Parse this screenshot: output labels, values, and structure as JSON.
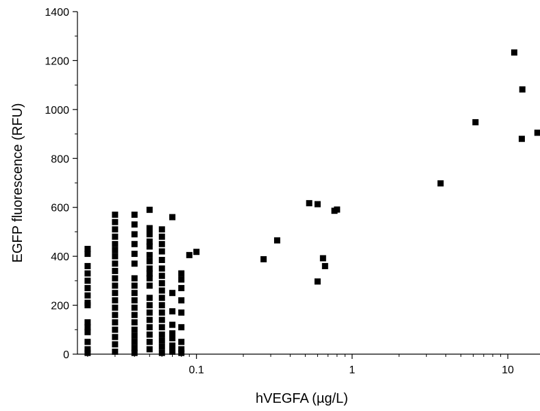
{
  "chart_data": {
    "type": "scatter",
    "xlabel": "hVEGFA (µg/L)",
    "ylabel": "EGFP fluorescence (RFU)",
    "xscale": "log",
    "xlim": [
      0.0172,
      16.1
    ],
    "ylim": [
      0,
      1400
    ],
    "grid": false,
    "marker_color": "#000000",
    "x_ticks": [
      {
        "value": 0.1,
        "label": "0.1"
      },
      {
        "value": 1,
        "label": "1"
      },
      {
        "value": 10,
        "label": "10"
      }
    ],
    "y_ticks": [
      {
        "value": 0,
        "label": "0"
      },
      {
        "value": 200,
        "label": "200"
      },
      {
        "value": 400,
        "label": "400"
      },
      {
        "value": 600,
        "label": "600"
      },
      {
        "value": 800,
        "label": "800"
      },
      {
        "value": 1000,
        "label": "1000"
      },
      {
        "value": 1200,
        "label": "1200"
      },
      {
        "value": 1400,
        "label": "1400"
      }
    ],
    "points": [
      {
        "x": 0.02,
        "y": 430
      },
      {
        "x": 0.02,
        "y": 410
      },
      {
        "x": 0.02,
        "y": 360
      },
      {
        "x": 0.02,
        "y": 330
      },
      {
        "x": 0.02,
        "y": 300
      },
      {
        "x": 0.02,
        "y": 270
      },
      {
        "x": 0.02,
        "y": 240
      },
      {
        "x": 0.02,
        "y": 210
      },
      {
        "x": 0.02,
        "y": 200
      },
      {
        "x": 0.02,
        "y": 130
      },
      {
        "x": 0.02,
        "y": 110
      },
      {
        "x": 0.02,
        "y": 90
      },
      {
        "x": 0.02,
        "y": 50
      },
      {
        "x": 0.02,
        "y": 20
      },
      {
        "x": 0.02,
        "y": 5
      },
      {
        "x": 0.03,
        "y": 570
      },
      {
        "x": 0.03,
        "y": 540
      },
      {
        "x": 0.03,
        "y": 510
      },
      {
        "x": 0.03,
        "y": 480
      },
      {
        "x": 0.03,
        "y": 450
      },
      {
        "x": 0.03,
        "y": 425
      },
      {
        "x": 0.03,
        "y": 400
      },
      {
        "x": 0.03,
        "y": 370
      },
      {
        "x": 0.03,
        "y": 340
      },
      {
        "x": 0.03,
        "y": 310
      },
      {
        "x": 0.03,
        "y": 280
      },
      {
        "x": 0.03,
        "y": 250
      },
      {
        "x": 0.03,
        "y": 220
      },
      {
        "x": 0.03,
        "y": 190
      },
      {
        "x": 0.03,
        "y": 160
      },
      {
        "x": 0.03,
        "y": 130
      },
      {
        "x": 0.03,
        "y": 100
      },
      {
        "x": 0.03,
        "y": 70
      },
      {
        "x": 0.03,
        "y": 40
      },
      {
        "x": 0.03,
        "y": 10
      },
      {
        "x": 0.04,
        "y": 570
      },
      {
        "x": 0.04,
        "y": 530
      },
      {
        "x": 0.04,
        "y": 490
      },
      {
        "x": 0.04,
        "y": 450
      },
      {
        "x": 0.04,
        "y": 410
      },
      {
        "x": 0.04,
        "y": 370
      },
      {
        "x": 0.04,
        "y": 310
      },
      {
        "x": 0.04,
        "y": 280
      },
      {
        "x": 0.04,
        "y": 250
      },
      {
        "x": 0.04,
        "y": 220
      },
      {
        "x": 0.04,
        "y": 190
      },
      {
        "x": 0.04,
        "y": 160
      },
      {
        "x": 0.04,
        "y": 130
      },
      {
        "x": 0.04,
        "y": 100
      },
      {
        "x": 0.04,
        "y": 75
      },
      {
        "x": 0.04,
        "y": 50
      },
      {
        "x": 0.04,
        "y": 25
      },
      {
        "x": 0.04,
        "y": 5
      },
      {
        "x": 0.05,
        "y": 590
      },
      {
        "x": 0.05,
        "y": 515
      },
      {
        "x": 0.05,
        "y": 490
      },
      {
        "x": 0.05,
        "y": 460
      },
      {
        "x": 0.05,
        "y": 440
      },
      {
        "x": 0.05,
        "y": 405
      },
      {
        "x": 0.05,
        "y": 380
      },
      {
        "x": 0.05,
        "y": 350
      },
      {
        "x": 0.05,
        "y": 330
      },
      {
        "x": 0.05,
        "y": 310
      },
      {
        "x": 0.05,
        "y": 280
      },
      {
        "x": 0.05,
        "y": 230
      },
      {
        "x": 0.05,
        "y": 200
      },
      {
        "x": 0.05,
        "y": 170
      },
      {
        "x": 0.05,
        "y": 140
      },
      {
        "x": 0.05,
        "y": 110
      },
      {
        "x": 0.05,
        "y": 80
      },
      {
        "x": 0.05,
        "y": 50
      },
      {
        "x": 0.05,
        "y": 20
      },
      {
        "x": 0.06,
        "y": 510
      },
      {
        "x": 0.06,
        "y": 480
      },
      {
        "x": 0.06,
        "y": 450
      },
      {
        "x": 0.06,
        "y": 420
      },
      {
        "x": 0.06,
        "y": 385
      },
      {
        "x": 0.06,
        "y": 350
      },
      {
        "x": 0.06,
        "y": 320
      },
      {
        "x": 0.06,
        "y": 290
      },
      {
        "x": 0.06,
        "y": 260
      },
      {
        "x": 0.06,
        "y": 230
      },
      {
        "x": 0.06,
        "y": 200
      },
      {
        "x": 0.06,
        "y": 170
      },
      {
        "x": 0.06,
        "y": 140
      },
      {
        "x": 0.06,
        "y": 110
      },
      {
        "x": 0.06,
        "y": 80
      },
      {
        "x": 0.06,
        "y": 55
      },
      {
        "x": 0.06,
        "y": 30
      },
      {
        "x": 0.06,
        "y": 5
      },
      {
        "x": 0.07,
        "y": 560
      },
      {
        "x": 0.07,
        "y": 250
      },
      {
        "x": 0.07,
        "y": 175
      },
      {
        "x": 0.07,
        "y": 120
      },
      {
        "x": 0.07,
        "y": 85
      },
      {
        "x": 0.07,
        "y": 65
      },
      {
        "x": 0.07,
        "y": 35
      },
      {
        "x": 0.07,
        "y": 10
      },
      {
        "x": 0.08,
        "y": 330
      },
      {
        "x": 0.08,
        "y": 305
      },
      {
        "x": 0.08,
        "y": 270
      },
      {
        "x": 0.08,
        "y": 220
      },
      {
        "x": 0.08,
        "y": 170
      },
      {
        "x": 0.08,
        "y": 110
      },
      {
        "x": 0.08,
        "y": 50
      },
      {
        "x": 0.08,
        "y": 20
      },
      {
        "x": 0.08,
        "y": 5
      },
      {
        "x": 0.09,
        "y": 405
      },
      {
        "x": 0.1,
        "y": 418
      },
      {
        "x": 0.27,
        "y": 388
      },
      {
        "x": 0.33,
        "y": 465
      },
      {
        "x": 0.53,
        "y": 617
      },
      {
        "x": 0.6,
        "y": 613
      },
      {
        "x": 0.6,
        "y": 297
      },
      {
        "x": 0.65,
        "y": 392
      },
      {
        "x": 0.67,
        "y": 360
      },
      {
        "x": 0.77,
        "y": 586
      },
      {
        "x": 0.8,
        "y": 591
      },
      {
        "x": 3.7,
        "y": 698
      },
      {
        "x": 6.2,
        "y": 948
      },
      {
        "x": 11.0,
        "y": 1233
      },
      {
        "x": 12.3,
        "y": 880
      },
      {
        "x": 12.4,
        "y": 1082
      },
      {
        "x": 15.5,
        "y": 905
      }
    ]
  }
}
